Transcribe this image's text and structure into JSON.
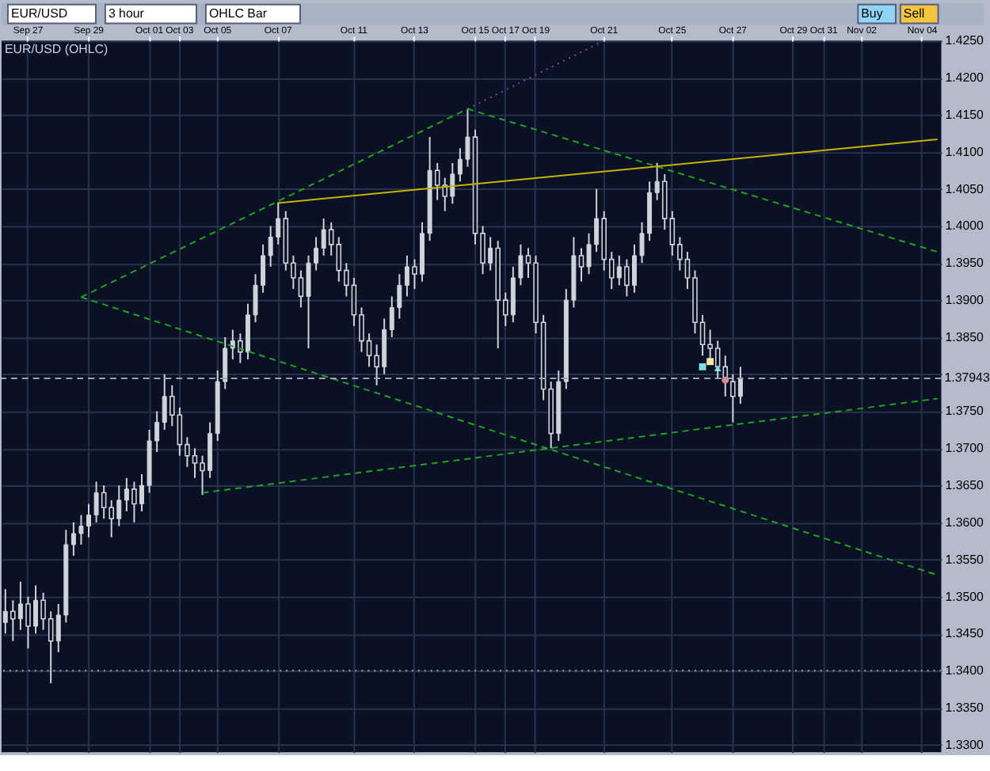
{
  "chart_data": {
    "type": "candlestick",
    "title": "EUR/USD (OHLC)",
    "annotations": [
      "EUR/USD",
      "3 hour",
      "OHLC Bar",
      "Buy",
      "Sell"
    ],
    "categories": [
      null,
      null,
      null,
      "Sep 27",
      null,
      null,
      null,
      null,
      null,
      null,
      null,
      "Sep 29",
      null,
      null,
      null,
      null,
      null,
      null,
      null,
      "Oct 01",
      null,
      null,
      null,
      "Oct 03",
      null,
      null,
      null,
      null,
      "Oct 05",
      null,
      null,
      null,
      null,
      null,
      null,
      null,
      "Oct 07",
      null,
      null,
      null,
      null,
      null,
      null,
      null,
      null,
      null,
      "Oct 11",
      null,
      null,
      null,
      null,
      null,
      null,
      null,
      "Oct 13",
      null,
      null,
      null,
      null,
      null,
      null,
      null,
      "Oct 15",
      null,
      null,
      null,
      "Oct 17",
      null,
      null,
      null,
      "Oct 19",
      null,
      null,
      null,
      null,
      null,
      null,
      null,
      null,
      "Oct 21",
      null,
      null,
      null,
      null,
      null,
      null,
      null,
      null,
      "Oct 25",
      null,
      null,
      null,
      null,
      null,
      null,
      null,
      "Oct 27",
      null,
      null,
      null,
      null,
      null,
      null,
      null,
      "Oct 29",
      null,
      null,
      null,
      "Oct 31",
      null,
      null,
      null,
      null,
      "Nov 02",
      null,
      null,
      null,
      null,
      null,
      null,
      null,
      "Nov 04",
      null,
      null
    ],
    "ylim": [
      1.329,
      1.425
    ],
    "yticks": [
      {
        "value": 1.33,
        "label": "1.3300"
      },
      {
        "value": 1.335,
        "label": "1.3350"
      },
      {
        "value": 1.34,
        "label": "1.3400"
      },
      {
        "value": 1.345,
        "label": "1.3450"
      },
      {
        "value": 1.35,
        "label": "1.3500"
      },
      {
        "value": 1.355,
        "label": "1.3550"
      },
      {
        "value": 1.36,
        "label": "1.3600"
      },
      {
        "value": 1.365,
        "label": "1.3650"
      },
      {
        "value": 1.37,
        "label": "1.3700"
      },
      {
        "value": 1.375,
        "label": "1.3750"
      },
      {
        "value": 1.38,
        "label": null
      },
      {
        "value": 1.385,
        "label": "1.3850"
      },
      {
        "value": 1.39,
        "label": "1.3900"
      },
      {
        "value": 1.395,
        "label": "1.3950"
      },
      {
        "value": 1.4,
        "label": "1.4000"
      },
      {
        "value": 1.405,
        "label": "1.4050"
      },
      {
        "value": 1.41,
        "label": "1.4100"
      },
      {
        "value": 1.415,
        "label": "1.4150"
      },
      {
        "value": 1.42,
        "label": "1.4200"
      },
      {
        "value": 1.425,
        "label": "1.4250"
      }
    ],
    "grid": true,
    "color": "#cfd3da",
    "ohlc": [
      [
        1.3465,
        1.351,
        1.345,
        1.348
      ],
      [
        1.348,
        1.3495,
        1.344,
        1.347
      ],
      [
        1.347,
        1.352,
        1.3455,
        1.349
      ],
      [
        1.349,
        1.35,
        1.343,
        1.346
      ],
      [
        1.346,
        1.3515,
        1.345,
        1.3495
      ],
      [
        1.3495,
        1.3505,
        1.3455,
        1.347
      ],
      [
        1.347,
        1.348,
        1.3383,
        1.344
      ],
      [
        1.344,
        1.349,
        1.3425,
        1.3475
      ],
      [
        1.3475,
        1.359,
        1.3465,
        1.357
      ],
      [
        1.357,
        1.36,
        1.3555,
        1.3585
      ],
      [
        1.3585,
        1.361,
        1.357,
        1.3595
      ],
      [
        1.3595,
        1.3625,
        1.358,
        1.361
      ],
      [
        1.361,
        1.3655,
        1.36,
        1.364
      ],
      [
        1.364,
        1.365,
        1.3605,
        1.362
      ],
      [
        1.362,
        1.363,
        1.358,
        1.3605
      ],
      [
        1.3605,
        1.365,
        1.3595,
        1.363
      ],
      [
        1.363,
        1.366,
        1.3615,
        1.3645
      ],
      [
        1.3645,
        1.3655,
        1.36,
        1.3625
      ],
      [
        1.3625,
        1.3665,
        1.3615,
        1.365
      ],
      [
        1.365,
        1.3725,
        1.364,
        1.371
      ],
      [
        1.371,
        1.375,
        1.3695,
        1.3735
      ],
      [
        1.3735,
        1.38,
        1.3725,
        1.377
      ],
      [
        1.377,
        1.3785,
        1.373,
        1.3745
      ],
      [
        1.3745,
        1.3755,
        1.369,
        1.3705
      ],
      [
        1.3705,
        1.3715,
        1.3675,
        1.369
      ],
      [
        1.369,
        1.37,
        1.366,
        1.368
      ],
      [
        1.368,
        1.369,
        1.3637,
        1.367
      ],
      [
        1.367,
        1.3735,
        1.366,
        1.372
      ],
      [
        1.372,
        1.3805,
        1.371,
        1.379
      ],
      [
        1.379,
        1.385,
        1.378,
        1.3835
      ],
      [
        1.3835,
        1.386,
        1.382,
        1.3845
      ],
      [
        1.3845,
        1.3855,
        1.3815,
        1.383
      ],
      [
        1.383,
        1.3895,
        1.382,
        1.388
      ],
      [
        1.388,
        1.3935,
        1.387,
        1.392
      ],
      [
        1.392,
        1.3975,
        1.391,
        1.396
      ],
      [
        1.396,
        1.4,
        1.3945,
        1.3985
      ],
      [
        1.3985,
        1.4032,
        1.3975,
        1.401
      ],
      [
        1.401,
        1.402,
        1.394,
        1.395
      ],
      [
        1.395,
        1.396,
        1.3915,
        1.393
      ],
      [
        1.393,
        1.394,
        1.389,
        1.3905
      ],
      [
        1.3905,
        1.396,
        1.3835,
        1.395
      ],
      [
        1.395,
        1.3985,
        1.394,
        1.397
      ],
      [
        1.397,
        1.401,
        1.396,
        1.3995
      ],
      [
        1.3995,
        1.4005,
        1.396,
        1.3975
      ],
      [
        1.3975,
        1.3985,
        1.3925,
        1.394
      ],
      [
        1.394,
        1.395,
        1.3905,
        1.392
      ],
      [
        1.392,
        1.393,
        1.3865,
        1.388
      ],
      [
        1.388,
        1.389,
        1.383,
        1.3845
      ],
      [
        1.3845,
        1.3855,
        1.381,
        1.3825
      ],
      [
        1.3825,
        1.384,
        1.3785,
        1.381
      ],
      [
        1.381,
        1.3875,
        1.38,
        1.386
      ],
      [
        1.386,
        1.3905,
        1.385,
        1.389
      ],
      [
        1.389,
        1.3935,
        1.3875,
        1.392
      ],
      [
        1.392,
        1.396,
        1.3905,
        1.3945
      ],
      [
        1.3945,
        1.3955,
        1.3915,
        1.3935
      ],
      [
        1.3935,
        1.4005,
        1.3925,
        1.399
      ],
      [
        1.399,
        1.412,
        1.398,
        1.4075
      ],
      [
        1.4075,
        1.4085,
        1.4035,
        1.4055
      ],
      [
        1.4055,
        1.4065,
        1.402,
        1.404
      ],
      [
        1.404,
        1.4085,
        1.403,
        1.407
      ],
      [
        1.407,
        1.4105,
        1.406,
        1.409
      ],
      [
        1.409,
        1.4158,
        1.408,
        1.412
      ],
      [
        1.412,
        1.413,
        1.3975,
        1.399
      ],
      [
        1.399,
        1.4,
        1.3935,
        1.395
      ],
      [
        1.395,
        1.3985,
        1.394,
        1.397
      ],
      [
        1.397,
        1.398,
        1.3835,
        1.39
      ],
      [
        1.39,
        1.391,
        1.3865,
        1.388
      ],
      [
        1.388,
        1.3945,
        1.387,
        1.393
      ],
      [
        1.393,
        1.3975,
        1.392,
        1.396
      ],
      [
        1.396,
        1.397,
        1.393,
        1.395
      ],
      [
        1.395,
        1.396,
        1.3855,
        1.387
      ],
      [
        1.387,
        1.388,
        1.3765,
        1.378
      ],
      [
        1.378,
        1.379,
        1.37,
        1.372
      ],
      [
        1.372,
        1.3805,
        1.371,
        1.379
      ],
      [
        1.379,
        1.3915,
        1.378,
        1.39
      ],
      [
        1.39,
        1.3985,
        1.389,
        1.396
      ],
      [
        1.396,
        1.397,
        1.3925,
        1.3945
      ],
      [
        1.3945,
        1.399,
        1.3935,
        1.3975
      ],
      [
        1.3975,
        1.405,
        1.3965,
        1.401
      ],
      [
        1.401,
        1.402,
        1.394,
        1.3955
      ],
      [
        1.3955,
        1.3965,
        1.3915,
        1.393
      ],
      [
        1.393,
        1.396,
        1.392,
        1.3945
      ],
      [
        1.3945,
        1.3955,
        1.3905,
        1.392
      ],
      [
        1.392,
        1.3975,
        1.391,
        1.396
      ],
      [
        1.396,
        1.4005,
        1.395,
        1.399
      ],
      [
        1.399,
        1.406,
        1.398,
        1.4045
      ],
      [
        1.4045,
        1.4085,
        1.4035,
        1.406
      ],
      [
        1.406,
        1.407,
        1.3995,
        1.401
      ],
      [
        1.401,
        1.402,
        1.396,
        1.3975
      ],
      [
        1.3975,
        1.3985,
        1.394,
        1.3955
      ],
      [
        1.3955,
        1.3965,
        1.3915,
        1.393
      ],
      [
        1.393,
        1.394,
        1.3855,
        1.387
      ],
      [
        1.387,
        1.388,
        1.3825,
        1.384
      ],
      [
        1.384,
        1.386,
        1.382,
        1.3835
      ],
      [
        1.3835,
        1.3845,
        1.3795,
        1.381
      ],
      [
        1.381,
        1.3825,
        1.377,
        1.379
      ],
      [
        1.379,
        1.38,
        1.3735,
        1.377
      ],
      [
        1.377,
        1.381,
        1.376,
        1.3795
      ],
      null,
      null,
      null,
      null,
      null,
      null,
      null,
      null,
      null,
      null,
      null,
      null,
      null,
      null,
      null,
      null,
      null,
      null,
      null,
      null,
      null,
      null,
      null,
      null,
      null,
      null
    ],
    "series": [
      {
        "type": "line",
        "color": "#1fa31f",
        "line_style": "dashed",
        "values": [
          null,
          null,
          null,
          null,
          null,
          null,
          null,
          null,
          null,
          null,
          1.3904,
          null,
          null,
          null,
          null,
          null,
          null,
          null,
          null,
          null,
          null,
          null,
          null,
          null,
          null,
          null,
          null,
          null,
          null,
          null,
          null,
          null,
          null,
          null,
          null,
          null,
          null,
          null,
          null,
          null,
          null,
          null,
          null,
          null,
          null,
          null,
          null,
          null,
          null,
          null,
          null,
          null,
          null,
          null,
          null,
          null,
          null,
          null,
          null,
          null,
          null,
          null,
          null,
          null,
          null,
          null,
          null,
          null,
          null,
          null,
          null,
          null,
          null,
          null,
          null,
          null,
          null,
          null,
          null,
          null,
          null,
          null,
          null,
          null,
          null,
          null,
          null,
          null,
          null,
          null,
          null,
          null,
          null,
          null,
          null,
          null,
          null,
          null,
          null,
          null,
          null,
          null,
          null,
          null,
          null,
          null,
          null,
          null,
          null,
          null,
          null,
          null,
          null,
          null,
          null,
          null,
          null,
          null,
          null,
          null,
          null,
          null,
          null,
          1.3529
        ]
      },
      {
        "type": "line",
        "color": "#1fa31f",
        "line_style": "dashed",
        "values": [
          null,
          null,
          null,
          null,
          null,
          null,
          null,
          null,
          null,
          null,
          1.3904,
          null,
          null,
          null,
          null,
          null,
          null,
          null,
          null,
          null,
          null,
          null,
          null,
          null,
          null,
          null,
          null,
          null,
          null,
          null,
          null,
          null,
          null,
          null,
          null,
          null,
          null,
          null,
          null,
          null,
          null,
          null,
          null,
          null,
          null,
          null,
          null,
          null,
          null,
          null,
          null,
          null,
          null,
          null,
          null,
          null,
          null,
          null,
          null,
          null,
          null,
          1.4158,
          null,
          null,
          null,
          null,
          null,
          null,
          null,
          null,
          null,
          null,
          null,
          null,
          null,
          null,
          null,
          null,
          null,
          null,
          null,
          null,
          null,
          null,
          null,
          null,
          null,
          null,
          null,
          null,
          null,
          null,
          null,
          null,
          null,
          null,
          null,
          null,
          null,
          null,
          null,
          null,
          null,
          null,
          null,
          null,
          null,
          null,
          null,
          null,
          null,
          null,
          null,
          null,
          null,
          null,
          null,
          null,
          null,
          null,
          null,
          null,
          null,
          null
        ]
      },
      {
        "type": "line",
        "color": "#8a3fb0",
        "line_style": "dotted",
        "values": [
          null,
          null,
          null,
          null,
          null,
          null,
          null,
          null,
          null,
          null,
          null,
          null,
          null,
          null,
          null,
          null,
          null,
          null,
          null,
          null,
          null,
          null,
          null,
          null,
          null,
          null,
          null,
          null,
          null,
          null,
          null,
          null,
          null,
          null,
          null,
          null,
          null,
          null,
          null,
          null,
          null,
          null,
          null,
          null,
          null,
          null,
          null,
          null,
          null,
          null,
          null,
          null,
          null,
          null,
          null,
          null,
          null,
          null,
          null,
          null,
          null,
          1.4158,
          null,
          null,
          null,
          null,
          null,
          null,
          null,
          null,
          null,
          null,
          null,
          null,
          null,
          null,
          null,
          null,
          null,
          1.425,
          null,
          null,
          null,
          null,
          null,
          null,
          null,
          null,
          null,
          null,
          null,
          null,
          null,
          null,
          null,
          null,
          null,
          null,
          null,
          null,
          null,
          null,
          null,
          null,
          null,
          null,
          null,
          null,
          null,
          null,
          null,
          null,
          null,
          null,
          null,
          null,
          null,
          null,
          null,
          null,
          null,
          null,
          null,
          null
        ]
      },
      {
        "type": "line",
        "color": "#1fa31f",
        "line_style": "dashed",
        "values": [
          null,
          null,
          null,
          null,
          null,
          null,
          null,
          null,
          null,
          null,
          null,
          null,
          null,
          null,
          null,
          null,
          null,
          null,
          null,
          null,
          null,
          null,
          null,
          null,
          null,
          null,
          null,
          null,
          null,
          null,
          null,
          null,
          null,
          null,
          null,
          null,
          null,
          null,
          null,
          null,
          null,
          null,
          null,
          null,
          null,
          null,
          null,
          null,
          null,
          null,
          null,
          null,
          null,
          null,
          null,
          null,
          null,
          null,
          null,
          null,
          null,
          1.4158,
          null,
          null,
          null,
          null,
          null,
          null,
          null,
          null,
          null,
          null,
          null,
          null,
          null,
          null,
          null,
          null,
          null,
          null,
          null,
          null,
          null,
          null,
          null,
          null,
          null,
          null,
          null,
          null,
          null,
          null,
          null,
          null,
          null,
          null,
          null,
          null,
          null,
          null,
          null,
          null,
          null,
          null,
          null,
          null,
          null,
          null,
          null,
          null,
          null,
          null,
          null,
          null,
          null,
          null,
          null,
          null,
          null,
          null,
          null,
          null,
          null,
          1.3965
        ]
      },
      {
        "type": "line",
        "color": "#c8b400",
        "line_style": "solid",
        "values": [
          null,
          null,
          null,
          null,
          null,
          null,
          null,
          null,
          null,
          null,
          null,
          null,
          null,
          null,
          null,
          null,
          null,
          null,
          null,
          null,
          null,
          null,
          null,
          null,
          null,
          null,
          null,
          null,
          null,
          null,
          null,
          null,
          null,
          null,
          null,
          null,
          1.4031,
          null,
          null,
          null,
          null,
          null,
          null,
          null,
          null,
          null,
          null,
          null,
          null,
          null,
          null,
          null,
          null,
          null,
          null,
          null,
          null,
          null,
          null,
          null,
          null,
          null,
          null,
          null,
          null,
          null,
          null,
          null,
          null,
          null,
          null,
          null,
          null,
          null,
          null,
          null,
          null,
          null,
          null,
          null,
          null,
          null,
          null,
          null,
          null,
          null,
          null,
          null,
          null,
          null,
          null,
          null,
          null,
          null,
          null,
          null,
          null,
          null,
          null,
          null,
          null,
          null,
          null,
          null,
          null,
          null,
          null,
          null,
          null,
          null,
          null,
          null,
          null,
          null,
          null,
          null,
          null,
          null,
          null,
          null,
          null,
          null,
          null,
          1.4117
        ]
      },
      {
        "type": "line",
        "color": "#1fa31f",
        "line_style": "dashed",
        "values": [
          null,
          null,
          null,
          null,
          null,
          null,
          null,
          null,
          null,
          null,
          null,
          null,
          null,
          null,
          null,
          null,
          null,
          null,
          null,
          null,
          null,
          null,
          null,
          null,
          null,
          null,
          1.364,
          null,
          null,
          null,
          null,
          null,
          null,
          null,
          null,
          null,
          null,
          null,
          null,
          null,
          null,
          null,
          null,
          null,
          null,
          null,
          null,
          null,
          null,
          null,
          null,
          null,
          null,
          null,
          null,
          null,
          null,
          null,
          null,
          null,
          null,
          null,
          null,
          null,
          null,
          null,
          null,
          null,
          null,
          null,
          null,
          null,
          null,
          null,
          null,
          null,
          null,
          null,
          null,
          null,
          null,
          null,
          null,
          null,
          null,
          null,
          null,
          null,
          null,
          null,
          null,
          null,
          null,
          null,
          null,
          null,
          null,
          null,
          null,
          null,
          null,
          null,
          null,
          null,
          null,
          null,
          null,
          null,
          null,
          null,
          null,
          null,
          null,
          null,
          null,
          null,
          null,
          null,
          null,
          null,
          null,
          null,
          null,
          1.3767
        ]
      },
      {
        "type": "scatter",
        "marker": "square",
        "color": "#7fe0e8",
        "values": [
          null,
          null,
          null,
          null,
          null,
          null,
          null,
          null,
          null,
          null,
          null,
          null,
          null,
          null,
          null,
          null,
          null,
          null,
          null,
          null,
          null,
          null,
          null,
          null,
          null,
          null,
          null,
          null,
          null,
          null,
          null,
          null,
          null,
          null,
          null,
          null,
          null,
          null,
          null,
          null,
          null,
          null,
          null,
          null,
          null,
          null,
          null,
          null,
          null,
          null,
          null,
          null,
          null,
          null,
          null,
          null,
          null,
          null,
          null,
          null,
          null,
          null,
          null,
          null,
          null,
          null,
          null,
          null,
          null,
          null,
          null,
          null,
          null,
          null,
          null,
          null,
          null,
          null,
          null,
          null,
          null,
          null,
          null,
          null,
          null,
          null,
          null,
          null,
          null,
          null,
          null,
          null,
          1.381,
          null,
          null,
          null,
          null,
          null,
          null,
          null,
          null,
          null,
          null,
          null,
          null,
          null,
          null,
          null,
          null,
          null,
          null,
          null,
          null,
          null,
          null,
          null,
          null,
          null,
          null,
          null,
          null,
          null,
          null,
          null
        ]
      },
      {
        "type": "scatter",
        "marker": "square",
        "color": "#f3e9a0",
        "values": [
          null,
          null,
          null,
          null,
          null,
          null,
          null,
          null,
          null,
          null,
          null,
          null,
          null,
          null,
          null,
          null,
          null,
          null,
          null,
          null,
          null,
          null,
          null,
          null,
          null,
          null,
          null,
          null,
          null,
          null,
          null,
          null,
          null,
          null,
          null,
          null,
          null,
          null,
          null,
          null,
          null,
          null,
          null,
          null,
          null,
          null,
          null,
          null,
          null,
          null,
          null,
          null,
          null,
          null,
          null,
          null,
          null,
          null,
          null,
          null,
          null,
          null,
          null,
          null,
          null,
          null,
          null,
          null,
          null,
          null,
          null,
          null,
          null,
          null,
          null,
          null,
          null,
          null,
          null,
          null,
          null,
          null,
          null,
          null,
          null,
          null,
          null,
          null,
          null,
          null,
          null,
          null,
          null,
          1.3817,
          null,
          null,
          null,
          null,
          null,
          null,
          null,
          null,
          null,
          null,
          null,
          null,
          null,
          null,
          null,
          null,
          null,
          null,
          null,
          null,
          null,
          null,
          null,
          null,
          null,
          null,
          null,
          null,
          null,
          null
        ]
      },
      {
        "type": "scatter",
        "marker": "triangle",
        "color": "#7fe0e8",
        "values": [
          null,
          null,
          null,
          null,
          null,
          null,
          null,
          null,
          null,
          null,
          null,
          null,
          null,
          null,
          null,
          null,
          null,
          null,
          null,
          null,
          null,
          null,
          null,
          null,
          null,
          null,
          null,
          null,
          null,
          null,
          null,
          null,
          null,
          null,
          null,
          null,
          null,
          null,
          null,
          null,
          null,
          null,
          null,
          null,
          null,
          null,
          null,
          null,
          null,
          null,
          null,
          null,
          null,
          null,
          null,
          null,
          null,
          null,
          null,
          null,
          null,
          null,
          null,
          null,
          null,
          null,
          null,
          null,
          null,
          null,
          null,
          null,
          null,
          null,
          null,
          null,
          null,
          null,
          null,
          null,
          null,
          null,
          null,
          null,
          null,
          null,
          null,
          null,
          null,
          null,
          null,
          null,
          null,
          null,
          1.3808,
          null,
          null,
          null,
          null,
          null,
          null,
          null,
          null,
          null,
          null,
          null,
          null,
          null,
          null,
          null,
          null,
          null,
          null,
          null,
          null,
          null,
          null,
          null,
          null,
          null,
          null,
          null,
          null,
          null
        ]
      },
      {
        "type": "scatter",
        "marker": "circle",
        "color": "#d98a8a",
        "values": [
          null,
          null,
          null,
          null,
          null,
          null,
          null,
          null,
          null,
          null,
          null,
          null,
          null,
          null,
          null,
          null,
          null,
          null,
          null,
          null,
          null,
          null,
          null,
          null,
          null,
          null,
          null,
          null,
          null,
          null,
          null,
          null,
          null,
          null,
          null,
          null,
          null,
          null,
          null,
          null,
          null,
          null,
          null,
          null,
          null,
          null,
          null,
          null,
          null,
          null,
          null,
          null,
          null,
          null,
          null,
          null,
          null,
          null,
          null,
          null,
          null,
          null,
          null,
          null,
          null,
          null,
          null,
          null,
          null,
          null,
          null,
          null,
          null,
          null,
          null,
          null,
          null,
          null,
          null,
          null,
          null,
          null,
          null,
          null,
          null,
          null,
          null,
          null,
          null,
          null,
          null,
          null,
          null,
          null,
          null,
          1.3792,
          null,
          null,
          null,
          null,
          null,
          null,
          null,
          null,
          null,
          null,
          null,
          null,
          null,
          null,
          null,
          null,
          null,
          null,
          null,
          null,
          null,
          null,
          null,
          null,
          null,
          null,
          null,
          null
        ]
      }
    ],
    "ref_lines": [
      {
        "axis": "y",
        "value": 1.37943,
        "label": "1.37943",
        "color": "#9aa3b5",
        "line_style": "dashed"
      },
      {
        "axis": "y",
        "value": 1.34,
        "color": "#9aa3b5",
        "line_style": "dotted"
      }
    ]
  }
}
